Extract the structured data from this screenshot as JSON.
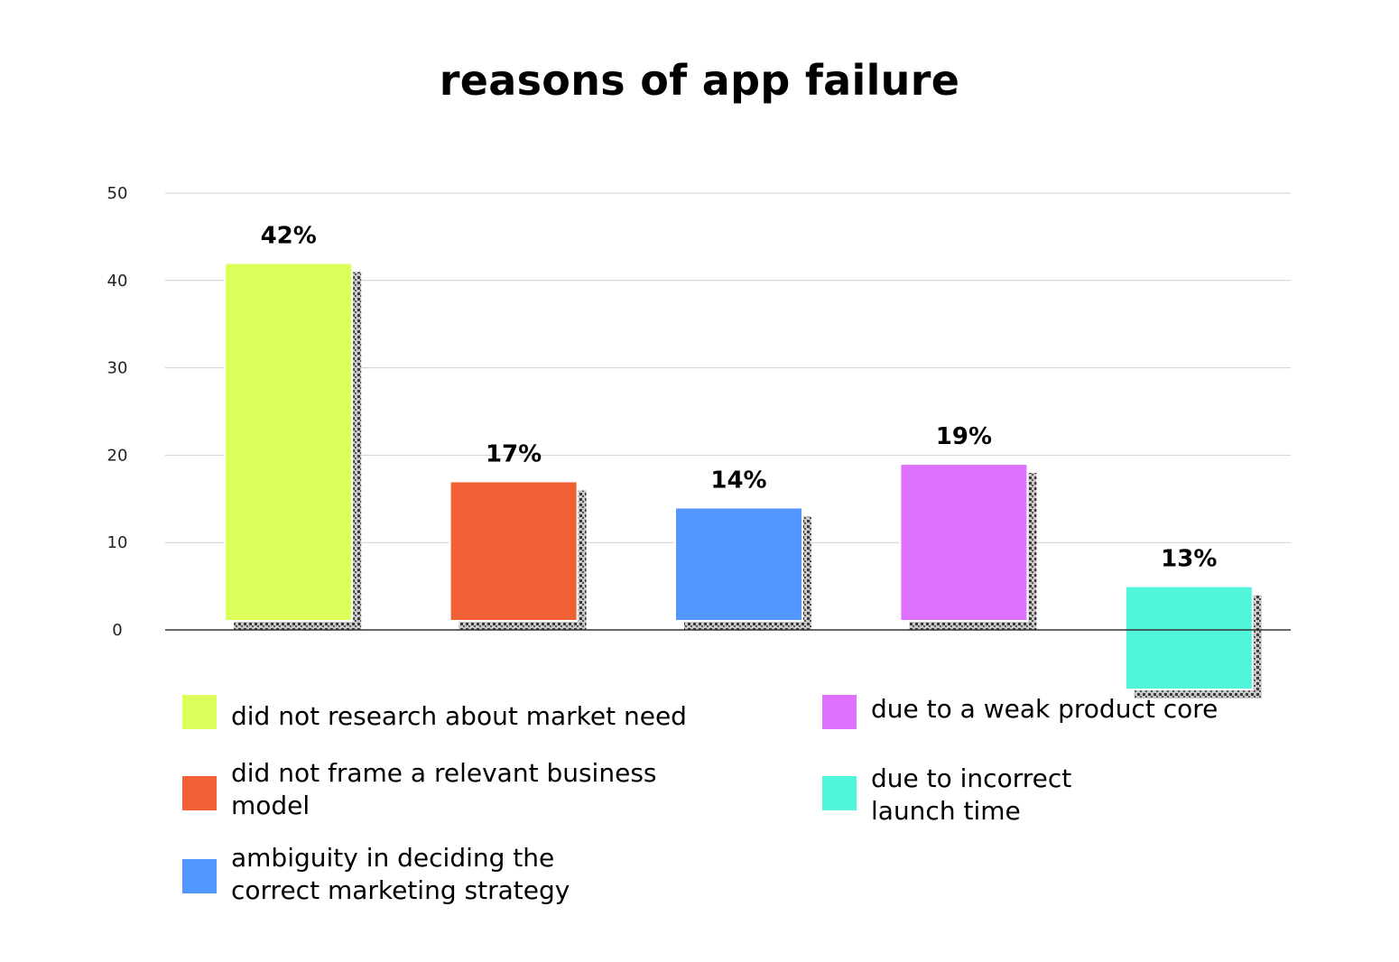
{
  "chart_data": {
    "type": "bar",
    "title": "reasons of app failure",
    "xlabel": "",
    "ylabel": "",
    "ylim": [
      0,
      50
    ],
    "yticks": [
      "0",
      "10",
      "20",
      "30",
      "40",
      "50"
    ],
    "grid": true,
    "legend_position": "bottom",
    "categories": [
      "did not research about market need",
      "did not frame a relevant business model",
      "ambiguity in deciding the correct marketing strategy",
      "due to a weak product core",
      "due to incorrect launch time"
    ],
    "values": [
      42,
      17,
      14,
      19,
      13
    ],
    "data_labels": [
      "42%",
      "17%",
      "14%",
      "19%",
      "13%"
    ],
    "colors": [
      "#dcff5a",
      "#f06235",
      "#5296ff",
      "#df71ff",
      "#50f5da"
    ],
    "legend": [
      {
        "lines": [
          "did not research about market need"
        ],
        "color": "#dcff5a"
      },
      {
        "lines": [
          "did not frame a relevant business",
          "model"
        ],
        "color": "#f06235"
      },
      {
        "lines": [
          "ambiguity in deciding the",
          "correct marketing strategy"
        ],
        "color": "#5296ff"
      },
      {
        "lines": [
          "due to a weak product core"
        ],
        "color": "#df71ff"
      },
      {
        "lines": [
          "due to incorrect",
          "launch time"
        ],
        "color": "#50f5da"
      }
    ]
  }
}
